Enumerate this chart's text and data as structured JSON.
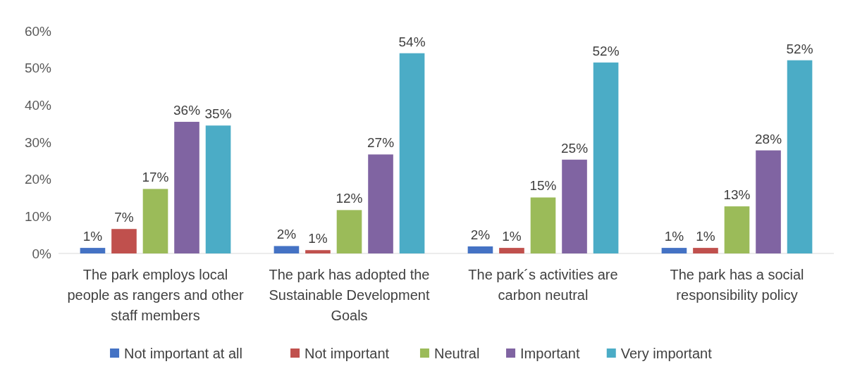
{
  "chart_data": {
    "type": "bar",
    "categories": [
      "The park employs local people as rangers and other staff members",
      "The park has adopted the Sustainable Development Goals",
      "The park´s activities are carbon neutral",
      "The park has a social responsibility policy"
    ],
    "series": [
      {
        "name": "Not important at all",
        "color": "#4472c4",
        "values": [
          1.5,
          2.0,
          1.9,
          1.5
        ],
        "value_labels": [
          "1%",
          "2%",
          "2%",
          "1%"
        ]
      },
      {
        "name": "Not important",
        "color": "#c0504d",
        "values": [
          6.6,
          0.9,
          1.5,
          1.5
        ],
        "value_labels": [
          "7%",
          "1%",
          "1%",
          "1%"
        ]
      },
      {
        "name": "Neutral",
        "color": "#9bbb59",
        "values": [
          17.4,
          11.7,
          15.1,
          12.7
        ],
        "value_labels": [
          "17%",
          "12%",
          "15%",
          "13%"
        ]
      },
      {
        "name": "Important",
        "color": "#8064a2",
        "values": [
          35.5,
          26.7,
          25.3,
          27.8
        ],
        "value_labels": [
          "36%",
          "27%",
          "25%",
          "28%"
        ]
      },
      {
        "name": "Very important",
        "color": "#4bacc6",
        "values": [
          34.5,
          54.0,
          51.5,
          52.1
        ],
        "value_labels": [
          "35%",
          "54%",
          "52%",
          "52%"
        ]
      }
    ],
    "ylim": [
      0,
      60
    ],
    "yticks": [
      {
        "value": 0,
        "label": "0%"
      },
      {
        "value": 10,
        "label": "10%"
      },
      {
        "value": 20,
        "label": "20%"
      },
      {
        "value": 30,
        "label": "30%"
      },
      {
        "value": 40,
        "label": "40%"
      },
      {
        "value": 50,
        "label": "50%"
      },
      {
        "value": 60,
        "label": "60%"
      }
    ],
    "grid": false,
    "legend": "bottom"
  }
}
